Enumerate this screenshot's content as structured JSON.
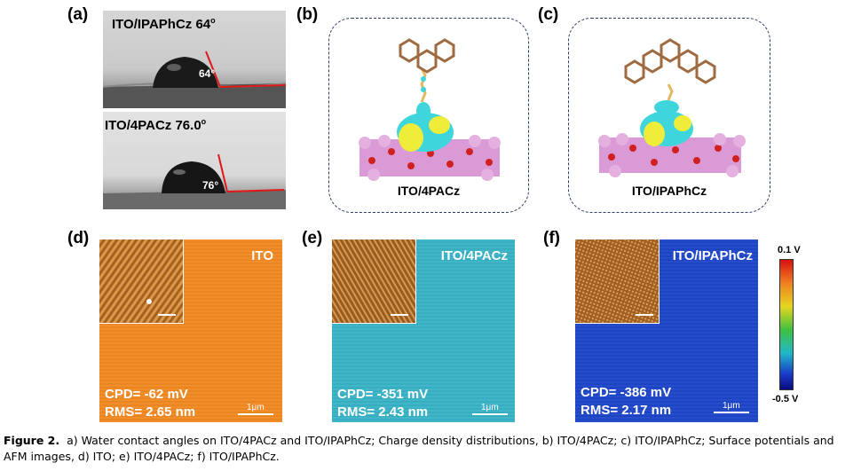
{
  "panels": {
    "a": {
      "label": "(a)",
      "top": {
        "title": "ITO/IPAPhCz 64",
        "title_degree": "o",
        "angle": "64°"
      },
      "bottom": {
        "title": "ITO/4PACz 76.0",
        "title_degree": "o",
        "angle": "76°"
      }
    },
    "b": {
      "label": "(b)",
      "caption": "ITO/4PACz"
    },
    "c": {
      "label": "(c)",
      "caption": "ITO/IPAPhCz"
    },
    "d": {
      "label": "(d)",
      "name": "ITO",
      "cpd": "CPD= -62 mV",
      "rms": "RMS= 2.65 nm",
      "scale": "1μm",
      "color": "#f28a22"
    },
    "e": {
      "label": "(e)",
      "name": "ITO/4PACz",
      "cpd": "CPD= -351 mV",
      "rms": "RMS= 2.43 nm",
      "scale": "1μm",
      "color": "#39b3c6"
    },
    "f": {
      "label": "(f)",
      "name": "ITO/IPAPhCz",
      "cpd": "CPD= -386 mV",
      "rms": "RMS= 2.17 nm",
      "scale": "1μm",
      "color": "#1e46c8"
    }
  },
  "colorbar": {
    "max": "0.1 V",
    "min": "-0.5 V"
  },
  "caption": {
    "label": "Figure 2.",
    "text": "a) Water contact angles on ITO/4PACz and ITO/IPAPhCz; Charge density distributions, b) ITO/4PACz; c) ITO/IPAPhCz; Surface potentials and AFM images, d) ITO; e) ITO/4PACz; f) ITO/IPAPhCz."
  }
}
